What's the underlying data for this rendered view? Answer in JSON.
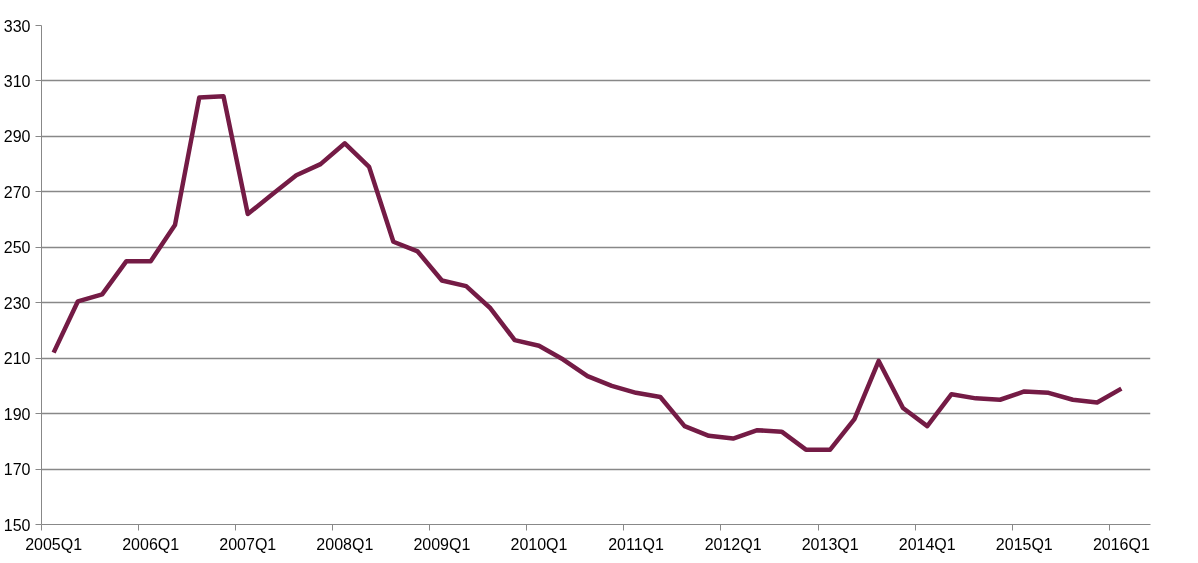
{
  "chart_data": {
    "type": "line",
    "categories": [
      "2005Q1",
      null,
      null,
      null,
      "2006Q1",
      null,
      null,
      null,
      "2007Q1",
      null,
      null,
      null,
      "2008Q1",
      null,
      null,
      null,
      "2009Q1",
      null,
      null,
      null,
      "2010Q1",
      null,
      null,
      null,
      "2011Q1",
      null,
      null,
      null,
      "2012Q1",
      null,
      null,
      null,
      "2013Q1",
      null,
      null,
      null,
      "2014Q1",
      null,
      null,
      null,
      "2015Q1",
      null,
      null,
      null,
      "2016Q1"
    ],
    "series": [
      {
        "color": "#741b45",
        "values": [
          212,
          230.5,
          233,
          245,
          245,
          258,
          304,
          304.5,
          262,
          269,
          276,
          280,
          287.5,
          279,
          252,
          248.5,
          238,
          236,
          228,
          216.5,
          214.5,
          209.5,
          203.5,
          200,
          197.5,
          196,
          185.5,
          182,
          181,
          184,
          183.5,
          177,
          177,
          188,
          209,
          192,
          185.5,
          197,
          195.5,
          195,
          198,
          197.5,
          195,
          194,
          199
        ]
      }
    ],
    "ylim": [
      150,
      330
    ],
    "yticks": [
      150,
      170,
      190,
      210,
      230,
      250,
      270,
      290,
      310,
      330
    ],
    "grid": "y",
    "marker": "none",
    "line_style": "solid"
  }
}
